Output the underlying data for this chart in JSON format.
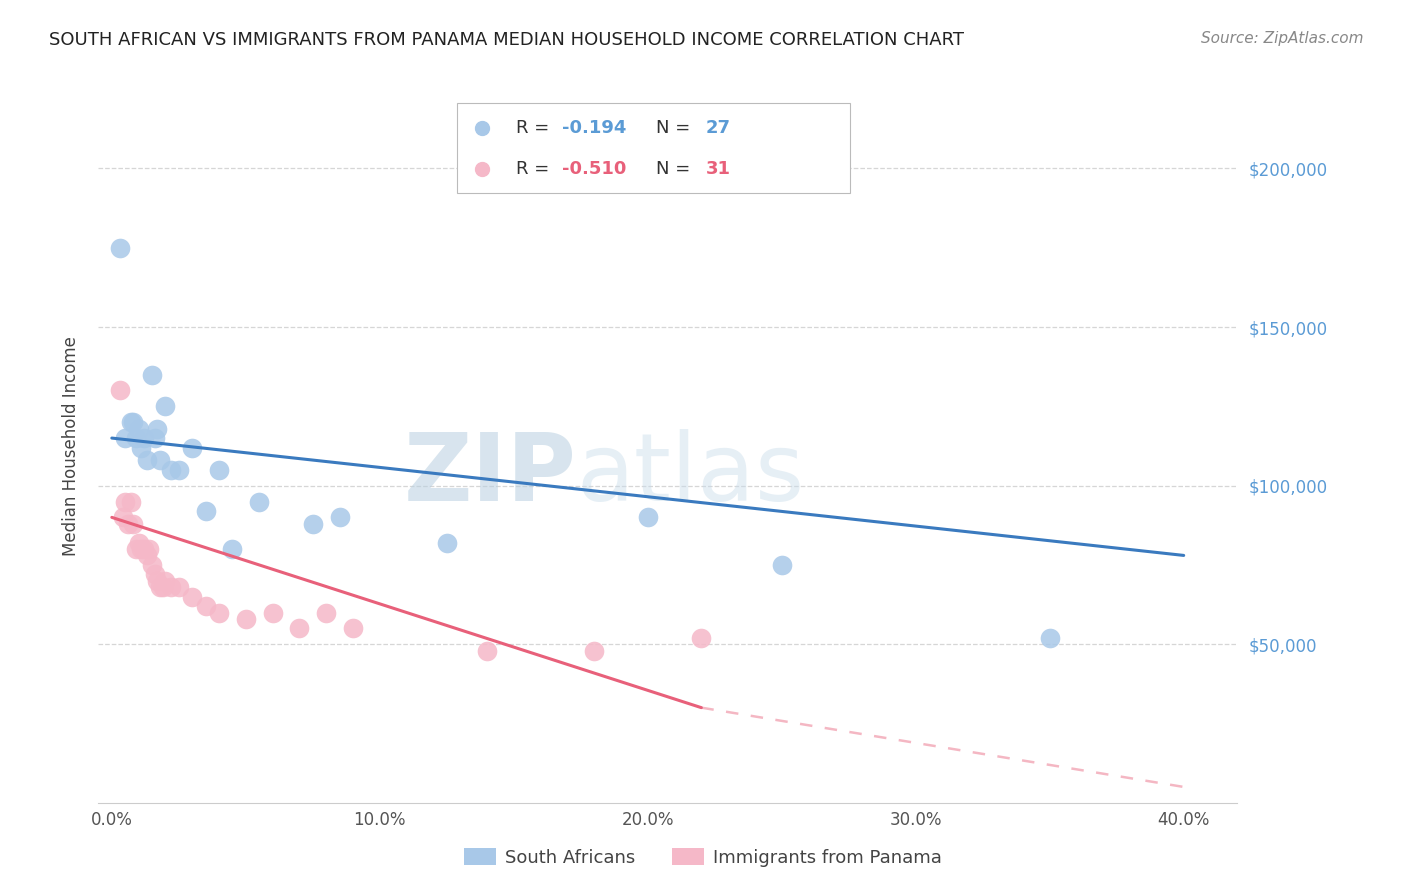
{
  "title": "SOUTH AFRICAN VS IMMIGRANTS FROM PANAMA MEDIAN HOUSEHOLD INCOME CORRELATION CHART",
  "source": "Source: ZipAtlas.com",
  "ylabel": "Median Household Income",
  "xlabel_ticks": [
    "0.0%",
    "10.0%",
    "20.0%",
    "30.0%",
    "40.0%"
  ],
  "xlabel_vals": [
    0.0,
    10.0,
    20.0,
    30.0,
    40.0
  ],
  "ytick_labels": [
    "$50,000",
    "$100,000",
    "$150,000",
    "$200,000"
  ],
  "ytick_vals": [
    50000,
    100000,
    150000,
    200000
  ],
  "ylim": [
    0,
    225000
  ],
  "xlim": [
    -0.5,
    42
  ],
  "blue_label": "South Africans",
  "pink_label": "Immigrants from Panama",
  "blue_R": "-0.194",
  "blue_N": "27",
  "pink_R": "-0.510",
  "pink_N": "31",
  "blue_color": "#a8c8e8",
  "blue_line_color": "#3a7abf",
  "pink_color": "#f5b8c8",
  "pink_line_color": "#e8607a",
  "watermark_zip": "ZIP",
  "watermark_atlas": "atlas",
  "blue_x": [
    0.3,
    0.5,
    0.7,
    0.8,
    0.9,
    1.0,
    1.1,
    1.2,
    1.3,
    1.5,
    1.7,
    2.0,
    2.5,
    3.0,
    3.5,
    4.0,
    5.5,
    7.5,
    8.5,
    12.5,
    20.0,
    25.0,
    35.0,
    1.6,
    1.8,
    2.2,
    4.5
  ],
  "blue_y": [
    175000,
    115000,
    120000,
    120000,
    115000,
    118000,
    112000,
    115000,
    108000,
    135000,
    118000,
    125000,
    105000,
    112000,
    92000,
    105000,
    95000,
    88000,
    90000,
    82000,
    90000,
    75000,
    52000,
    115000,
    108000,
    105000,
    80000
  ],
  "pink_x": [
    0.3,
    0.5,
    0.7,
    0.8,
    0.9,
    1.0,
    1.1,
    1.2,
    1.3,
    1.4,
    1.5,
    1.6,
    1.7,
    1.8,
    2.0,
    2.2,
    2.5,
    3.0,
    3.5,
    4.0,
    5.0,
    6.0,
    7.0,
    8.0,
    9.0,
    14.0,
    18.0,
    22.0,
    0.4,
    0.6,
    1.9
  ],
  "pink_y": [
    130000,
    95000,
    95000,
    88000,
    80000,
    82000,
    80000,
    80000,
    78000,
    80000,
    75000,
    72000,
    70000,
    68000,
    70000,
    68000,
    68000,
    65000,
    62000,
    60000,
    58000,
    60000,
    55000,
    60000,
    55000,
    48000,
    48000,
    52000,
    90000,
    88000,
    68000
  ],
  "blue_line_x0": 0,
  "blue_line_y0": 115000,
  "blue_line_x1": 40,
  "blue_line_y1": 78000,
  "pink_solid_x0": 0,
  "pink_solid_y0": 90000,
  "pink_solid_x1": 22,
  "pink_solid_y1": 30000,
  "pink_dash_x0": 22,
  "pink_dash_y0": 30000,
  "pink_dash_x1": 40,
  "pink_dash_y1": 5000
}
